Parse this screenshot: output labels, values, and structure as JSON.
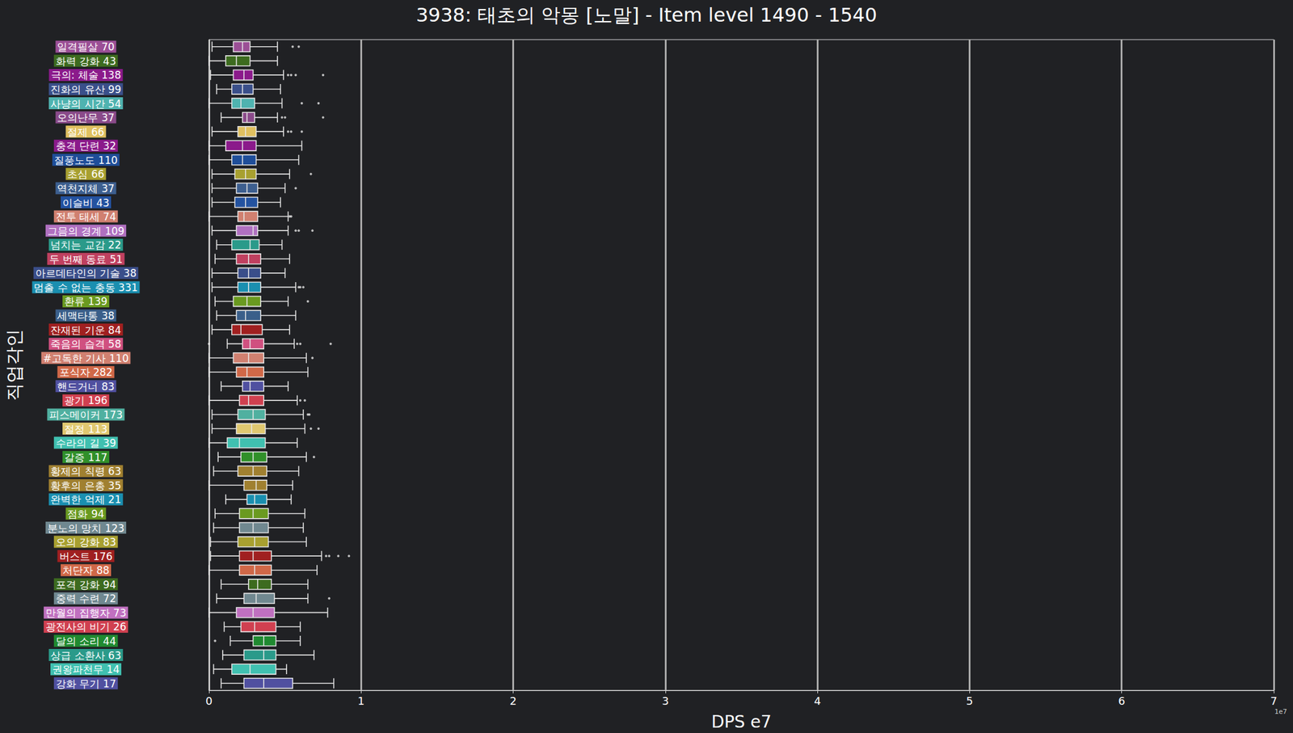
{
  "chart_data": {
    "type": "boxplot",
    "orientation": "horizontal",
    "title": "3938: 태초의 악몽 [노말] - Item level 1490 - 1540",
    "x_label": "DPS e7",
    "y_label": "직업각인",
    "annotations": [
      "1e7"
    ],
    "xlim": [
      0,
      7
    ],
    "xticks": [
      0,
      1,
      2,
      3,
      4,
      5,
      6,
      7
    ],
    "grid": true,
    "categories": [
      "일격필살 70",
      "화력 강화 43",
      "극의: 체술 138",
      "진화의 유산 99",
      "사냥의 시간 54",
      "오의난무 37",
      "절제 66",
      "충격 단련 32",
      "질풍노도 110",
      "초심 66",
      "역천지체 37",
      "이슬비 43",
      "전투 태세 74",
      "그믐의 경계 109",
      "넘치는 교감 22",
      "두 번째 동료 51",
      "아르데타인의 기술 38",
      "멈출 수 없는 충동 331",
      "환류 139",
      "세맥타통 38",
      "잔재된 기운 84",
      "죽음의 습격 58",
      "#고독한 기사 110",
      "포식자 282",
      "핸드거너 83",
      "광기 196",
      "피스메이커 173",
      "절정 113",
      "수라의 길 39",
      "갈증 117",
      "황제의 칙령 63",
      "황후의 은총 35",
      "완벽한 억제 21",
      "점화 94",
      "분노의 망치 123",
      "오의 강화 83",
      "버스트 176",
      "처단자 88",
      "포격 강화 94",
      "중력 수련 72",
      "만월의 집행자 73",
      "광전사의 비기 26",
      "달의 소리 44",
      "상급 소환사 63",
      "권왕파천무 14",
      "강화 무기 17"
    ],
    "colors": [
      "#9b4f96",
      "#3d6b1f",
      "#8b1a8b",
      "#3a4f8a",
      "#4fb3b0",
      "#8a4a8a",
      "#e0c060",
      "#8b1a8b",
      "#1f4e99",
      "#a8a030",
      "#3d5f8f",
      "#2352a0",
      "#d08070",
      "#b070c0",
      "#2a9a8a",
      "#c04060",
      "#3a4e8a",
      "#1a8fb0",
      "#6a9a20",
      "#3a5f8a",
      "#a02020",
      "#d05080",
      "#d08070",
      "#d06848",
      "#5050a0",
      "#d04050",
      "#50b0a0",
      "#e0c870",
      "#40c0b0",
      "#30902a",
      "#a08030",
      "#a08030",
      "#1a8fb0",
      "#6a9a20",
      "#708890",
      "#a8a030",
      "#a02020",
      "#d06848",
      "#3d6b1f",
      "#708890",
      "#c070c0",
      "#d04050",
      "#208a30",
      "#2a9a8a",
      "#40c0b0",
      "#5050a0"
    ],
    "stats": [
      [
        0.02,
        0.16,
        0.22,
        0.27,
        0.45
      ],
      [
        0.0,
        0.11,
        0.18,
        0.27,
        0.45
      ],
      [
        0.01,
        0.16,
        0.23,
        0.29,
        0.49
      ],
      [
        0.05,
        0.15,
        0.22,
        0.29,
        0.47
      ],
      [
        0.0,
        0.15,
        0.21,
        0.3,
        0.48
      ],
      [
        0.08,
        0.22,
        0.25,
        0.3,
        0.45
      ],
      [
        0.02,
        0.19,
        0.24,
        0.31,
        0.49
      ],
      [
        0.0,
        0.11,
        0.22,
        0.31,
        0.61
      ],
      [
        0.0,
        0.15,
        0.22,
        0.31,
        0.59
      ],
      [
        0.02,
        0.17,
        0.24,
        0.31,
        0.53
      ],
      [
        0.02,
        0.18,
        0.25,
        0.32,
        0.5
      ],
      [
        0.02,
        0.17,
        0.24,
        0.32,
        0.47
      ],
      [
        0.0,
        0.19,
        0.23,
        0.32,
        0.52
      ],
      [
        0.02,
        0.18,
        0.29,
        0.32,
        0.52
      ],
      [
        0.05,
        0.15,
        0.27,
        0.33,
        0.48
      ],
      [
        0.04,
        0.18,
        0.26,
        0.34,
        0.53
      ],
      [
        0.02,
        0.19,
        0.26,
        0.34,
        0.5
      ],
      [
        0.02,
        0.19,
        0.26,
        0.34,
        0.57
      ],
      [
        0.04,
        0.16,
        0.25,
        0.34,
        0.52
      ],
      [
        0.05,
        0.18,
        0.24,
        0.34,
        0.57
      ],
      [
        0.02,
        0.15,
        0.21,
        0.35,
        0.53
      ],
      [
        0.12,
        0.22,
        0.27,
        0.36,
        0.56
      ],
      [
        0.0,
        0.16,
        0.26,
        0.36,
        0.64
      ],
      [
        0.0,
        0.18,
        0.25,
        0.36,
        0.65
      ],
      [
        0.08,
        0.22,
        0.27,
        0.36,
        0.52
      ],
      [
        0.0,
        0.2,
        0.26,
        0.36,
        0.58
      ],
      [
        0.02,
        0.19,
        0.29,
        0.37,
        0.62
      ],
      [
        0.02,
        0.18,
        0.28,
        0.37,
        0.63
      ],
      [
        0.0,
        0.12,
        0.2,
        0.37,
        0.58
      ],
      [
        0.06,
        0.21,
        0.29,
        0.38,
        0.64
      ],
      [
        0.03,
        0.19,
        0.29,
        0.38,
        0.59
      ],
      [
        0.0,
        0.23,
        0.31,
        0.38,
        0.55
      ],
      [
        0.11,
        0.25,
        0.3,
        0.38,
        0.54
      ],
      [
        0.04,
        0.2,
        0.29,
        0.39,
        0.63
      ],
      [
        0.03,
        0.2,
        0.29,
        0.39,
        0.62
      ],
      [
        0.01,
        0.19,
        0.3,
        0.39,
        0.64
      ],
      [
        0.01,
        0.2,
        0.29,
        0.41,
        0.74
      ],
      [
        0.0,
        0.2,
        0.3,
        0.41,
        0.71
      ],
      [
        0.08,
        0.26,
        0.32,
        0.41,
        0.65
      ],
      [
        0.05,
        0.23,
        0.31,
        0.43,
        0.65
      ],
      [
        0.0,
        0.18,
        0.29,
        0.43,
        0.78
      ],
      [
        0.1,
        0.21,
        0.3,
        0.44,
        0.6
      ],
      [
        0.14,
        0.29,
        0.36,
        0.44,
        0.6
      ],
      [
        0.09,
        0.23,
        0.36,
        0.44,
        0.69
      ],
      [
        0.03,
        0.15,
        0.27,
        0.44,
        0.51
      ],
      [
        0.08,
        0.23,
        0.36,
        0.55,
        0.82
      ]
    ],
    "outliers": [
      [
        0.55,
        0.59
      ],
      [],
      [
        0.52,
        0.54,
        0.57,
        0.75
      ],
      [],
      [
        0.61,
        0.72
      ],
      [
        0.48,
        0.5,
        0.75
      ],
      [
        0.52,
        0.54,
        0.61
      ],
      [],
      [],
      [
        0.67
      ],
      [
        0.57
      ],
      [],
      [
        0.53,
        0.54
      ],
      [
        0.57,
        0.59,
        0.68
      ],
      [],
      [],
      [],
      [
        0.59,
        0.6,
        0.62
      ],
      [
        0.65
      ],
      [],
      [],
      [
        0.0,
        0.58,
        0.6,
        0.8
      ],
      [
        0.68
      ],
      [],
      [],
      [
        0.6,
        0.63
      ],
      [
        0.65,
        0.66
      ],
      [
        0.67,
        0.72
      ],
      [],
      [
        0.69
      ],
      [],
      [],
      [],
      [],
      [],
      [],
      [
        0.77,
        0.79,
        0.85,
        0.92
      ],
      [],
      [],
      [
        0.79
      ],
      [],
      [],
      [
        0.04
      ],
      [],
      [],
      []
    ]
  }
}
